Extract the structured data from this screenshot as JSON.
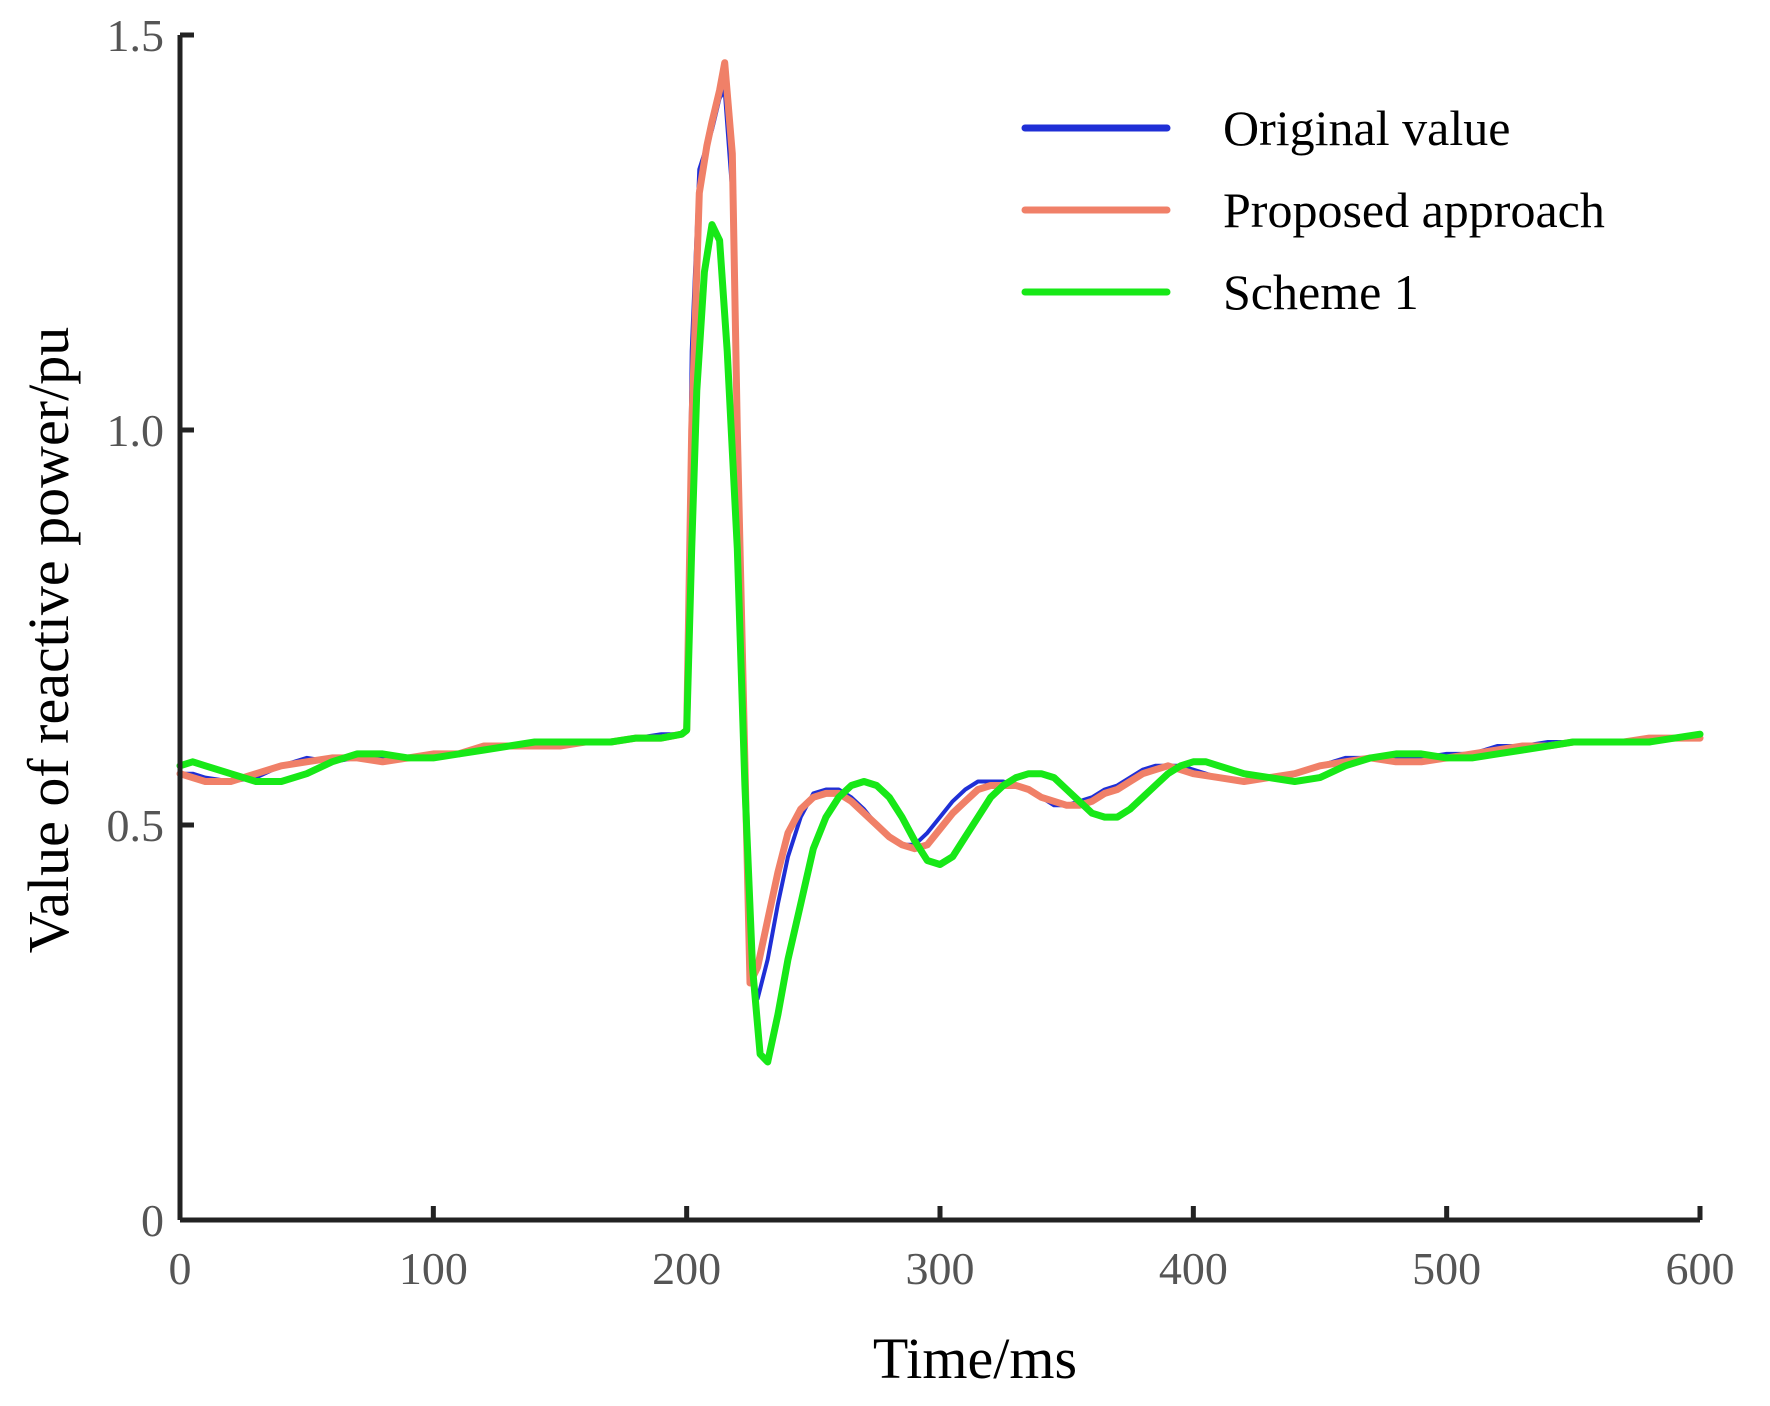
{
  "chart_data": {
    "type": "line",
    "xlabel": "Time/ms",
    "ylabel": "Value of reactive power/pu",
    "xlim": [
      0,
      600
    ],
    "ylim": [
      0,
      1.5
    ],
    "xticks": [
      0,
      100,
      200,
      300,
      400,
      500,
      600
    ],
    "yticks": [
      0,
      0.5,
      1.0,
      1.5
    ],
    "xtick_labels": [
      "0",
      "100",
      "200",
      "300",
      "400",
      "500",
      "600"
    ],
    "ytick_labels": [
      "0",
      "0.5",
      "1.0",
      "1.5"
    ],
    "grid": false,
    "legend_position": "top-right",
    "series": [
      {
        "name": "Original value",
        "color": "#1f2fd6",
        "x": [
          0,
          5,
          10,
          20,
          30,
          40,
          50,
          60,
          70,
          80,
          90,
          100,
          110,
          120,
          130,
          140,
          150,
          160,
          170,
          180,
          190,
          198,
          200,
          202,
          205,
          208,
          210,
          213,
          215,
          218,
          220,
          223,
          225,
          228,
          232,
          236,
          240,
          245,
          250,
          255,
          260,
          265,
          270,
          275,
          280,
          285,
          290,
          295,
          300,
          305,
          310,
          315,
          320,
          325,
          330,
          335,
          340,
          345,
          350,
          355,
          360,
          365,
          370,
          375,
          380,
          385,
          390,
          395,
          400,
          410,
          420,
          430,
          440,
          450,
          460,
          470,
          480,
          490,
          500,
          510,
          520,
          530,
          540,
          550,
          560,
          570,
          580,
          590,
          600
        ],
        "y": [
          0.565,
          0.565,
          0.56,
          0.555,
          0.56,
          0.575,
          0.585,
          0.58,
          0.585,
          0.585,
          0.585,
          0.59,
          0.59,
          0.6,
          0.6,
          0.6,
          0.6,
          0.605,
          0.605,
          0.61,
          0.615,
          0.615,
          0.62,
          1.1,
          1.33,
          1.36,
          1.38,
          1.42,
          1.43,
          1.3,
          0.95,
          0.55,
          0.33,
          0.28,
          0.33,
          0.4,
          0.46,
          0.51,
          0.54,
          0.545,
          0.545,
          0.535,
          0.52,
          0.5,
          0.485,
          0.475,
          0.475,
          0.49,
          0.51,
          0.53,
          0.545,
          0.555,
          0.555,
          0.555,
          0.55,
          0.545,
          0.535,
          0.525,
          0.525,
          0.53,
          0.535,
          0.545,
          0.55,
          0.56,
          0.57,
          0.575,
          0.575,
          0.575,
          0.57,
          0.56,
          0.555,
          0.56,
          0.565,
          0.575,
          0.585,
          0.585,
          0.585,
          0.585,
          0.59,
          0.59,
          0.6,
          0.6,
          0.605,
          0.605,
          0.605,
          0.605,
          0.61,
          0.61,
          0.61
        ]
      },
      {
        "name": "Proposed approach",
        "color": "#f08068",
        "x": [
          0,
          5,
          10,
          20,
          30,
          40,
          50,
          60,
          70,
          80,
          90,
          100,
          110,
          120,
          130,
          140,
          150,
          160,
          170,
          180,
          190,
          198,
          200,
          202,
          205,
          208,
          210,
          213,
          215,
          218,
          220,
          223,
          225,
          228,
          232,
          236,
          240,
          245,
          250,
          255,
          260,
          265,
          270,
          275,
          280,
          285,
          290,
          295,
          300,
          305,
          310,
          315,
          320,
          325,
          330,
          335,
          340,
          345,
          350,
          355,
          360,
          365,
          370,
          375,
          380,
          385,
          390,
          395,
          400,
          410,
          420,
          430,
          440,
          450,
          460,
          470,
          480,
          490,
          500,
          510,
          520,
          530,
          540,
          550,
          560,
          570,
          580,
          590,
          600
        ],
        "y": [
          0.565,
          0.56,
          0.555,
          0.555,
          0.565,
          0.575,
          0.58,
          0.585,
          0.585,
          0.58,
          0.585,
          0.59,
          0.59,
          0.6,
          0.6,
          0.6,
          0.6,
          0.605,
          0.605,
          0.61,
          0.61,
          0.615,
          0.62,
          1.0,
          1.3,
          1.36,
          1.39,
          1.43,
          1.465,
          1.35,
          1.0,
          0.58,
          0.3,
          0.32,
          0.38,
          0.44,
          0.49,
          0.52,
          0.535,
          0.54,
          0.54,
          0.53,
          0.515,
          0.5,
          0.485,
          0.475,
          0.47,
          0.475,
          0.495,
          0.515,
          0.53,
          0.545,
          0.55,
          0.55,
          0.55,
          0.545,
          0.535,
          0.53,
          0.525,
          0.525,
          0.53,
          0.54,
          0.545,
          0.555,
          0.565,
          0.57,
          0.575,
          0.57,
          0.565,
          0.56,
          0.555,
          0.56,
          0.565,
          0.575,
          0.58,
          0.585,
          0.58,
          0.58,
          0.585,
          0.59,
          0.595,
          0.6,
          0.6,
          0.605,
          0.605,
          0.605,
          0.61,
          0.61,
          0.61
        ]
      },
      {
        "name": "Scheme 1",
        "color": "#17e817",
        "x": [
          0,
          5,
          10,
          20,
          30,
          40,
          50,
          60,
          70,
          80,
          90,
          100,
          110,
          120,
          130,
          140,
          150,
          160,
          170,
          180,
          190,
          198,
          200,
          202,
          204,
          207,
          210,
          213,
          216,
          220,
          223,
          226,
          229,
          232,
          236,
          240,
          245,
          250,
          255,
          260,
          265,
          270,
          275,
          280,
          285,
          290,
          295,
          300,
          305,
          310,
          315,
          320,
          325,
          330,
          335,
          340,
          345,
          350,
          355,
          360,
          365,
          370,
          375,
          380,
          385,
          390,
          395,
          400,
          405,
          410,
          420,
          430,
          440,
          450,
          460,
          470,
          480,
          490,
          500,
          510,
          520,
          530,
          540,
          550,
          560,
          570,
          580,
          590,
          600
        ],
        "y": [
          0.575,
          0.58,
          0.575,
          0.565,
          0.555,
          0.555,
          0.565,
          0.58,
          0.59,
          0.59,
          0.585,
          0.585,
          0.59,
          0.595,
          0.6,
          0.605,
          0.605,
          0.605,
          0.605,
          0.61,
          0.61,
          0.615,
          0.62,
          0.85,
          1.05,
          1.2,
          1.26,
          1.24,
          1.1,
          0.85,
          0.55,
          0.32,
          0.21,
          0.2,
          0.26,
          0.33,
          0.4,
          0.47,
          0.51,
          0.535,
          0.55,
          0.555,
          0.55,
          0.535,
          0.51,
          0.48,
          0.455,
          0.45,
          0.46,
          0.485,
          0.51,
          0.535,
          0.55,
          0.56,
          0.565,
          0.565,
          0.56,
          0.545,
          0.53,
          0.515,
          0.51,
          0.51,
          0.52,
          0.535,
          0.55,
          0.565,
          0.575,
          0.58,
          0.58,
          0.575,
          0.565,
          0.56,
          0.555,
          0.56,
          0.575,
          0.585,
          0.59,
          0.59,
          0.585,
          0.585,
          0.59,
          0.595,
          0.6,
          0.605,
          0.605,
          0.605,
          0.605,
          0.61,
          0.615
        ]
      }
    ]
  }
}
